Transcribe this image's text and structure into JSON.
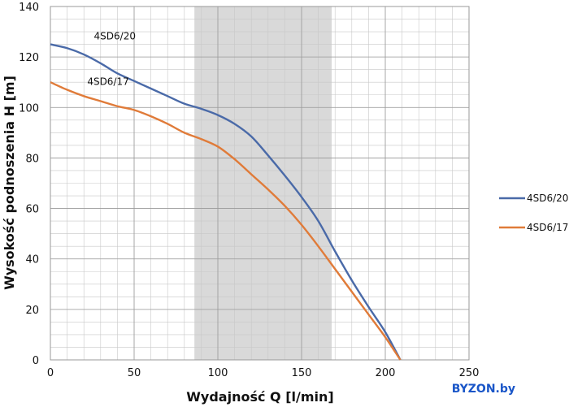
{
  "chart_data": {
    "type": "line",
    "xlabel": "Wydajność Q [l/min]",
    "ylabel": "Wysokość podnoszenia H [m]",
    "xlim": [
      0,
      250
    ],
    "ylim": [
      0,
      140
    ],
    "xticks": [
      0,
      50,
      100,
      150,
      200,
      250
    ],
    "yticks": [
      0,
      20,
      40,
      60,
      80,
      100,
      120,
      140
    ],
    "grid": true,
    "legend": "right",
    "highlight_band": {
      "from": 86,
      "to": 168,
      "color": "#d9d9d9"
    },
    "series": [
      {
        "name": "4SD6/20",
        "color": "#4a6aa8",
        "x": [
          0,
          10,
          20,
          30,
          40,
          50,
          60,
          70,
          80,
          90,
          100,
          110,
          120,
          130,
          140,
          150,
          160,
          170,
          180,
          190,
          200,
          209
        ],
        "y": [
          125,
          123.5,
          121,
          117.5,
          113.5,
          110.5,
          107.5,
          104.5,
          101.5,
          99.5,
          97,
          93.5,
          88.5,
          81,
          73,
          64.5,
          55,
          43,
          31.5,
          21,
          11,
          0
        ]
      },
      {
        "name": "4SD6/17",
        "color": "#e07b39",
        "x": [
          0,
          10,
          20,
          30,
          40,
          50,
          60,
          70,
          80,
          90,
          100,
          110,
          120,
          130,
          140,
          150,
          160,
          170,
          180,
          190,
          200,
          209
        ],
        "y": [
          110,
          107,
          104.5,
          102.5,
          100.5,
          99,
          96.5,
          93.5,
          90,
          87.5,
          84.5,
          79.5,
          73.5,
          67.5,
          61,
          53.5,
          45,
          36,
          27,
          18,
          9,
          0
        ]
      }
    ],
    "curve_labels": [
      {
        "text": "4SD6/20",
        "x": 26,
        "y": 127
      },
      {
        "text": "4SD6/17",
        "x": 22,
        "y": 109
      }
    ]
  },
  "watermark": "BYZON.by"
}
